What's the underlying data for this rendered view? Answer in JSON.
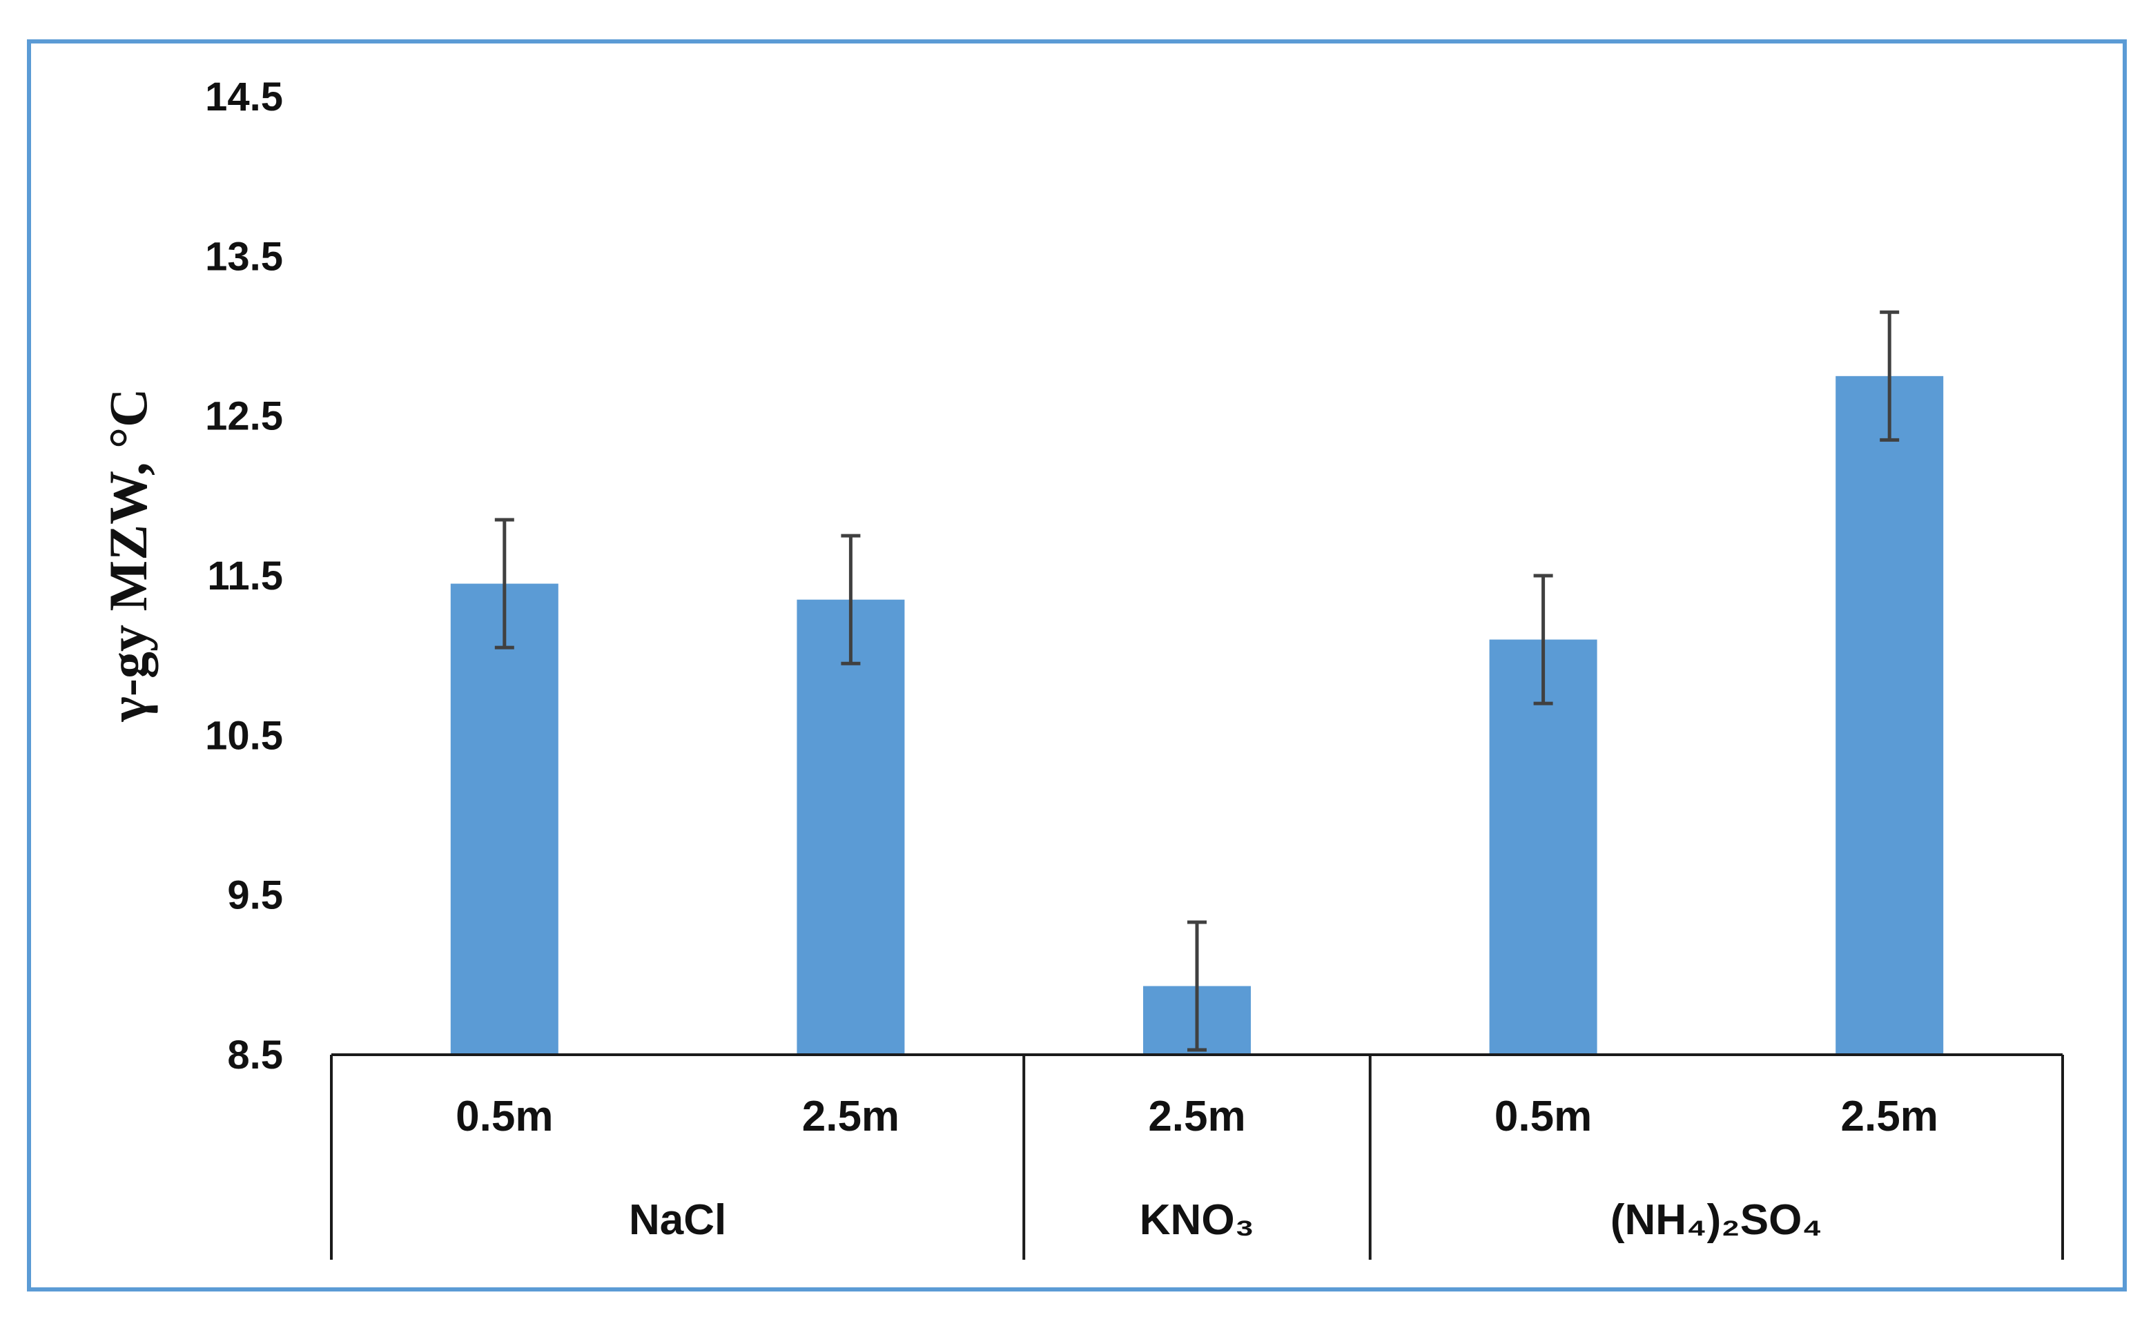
{
  "chart_data": {
    "type": "bar",
    "title": "",
    "xlabel": "",
    "ylabel": "γ-gy  MZW, °C",
    "ylim": [
      8.5,
      14.5
    ],
    "yticks": [
      "14.5",
      "13.5",
      "12.5",
      "11.5",
      "10.5",
      "9.5",
      "8.5"
    ],
    "ytick_values": [
      14.5,
      13.5,
      12.5,
      11.5,
      10.5,
      9.5,
      8.5
    ],
    "grid": false,
    "legend": "none",
    "categories": [
      "0.5m",
      "2.5m",
      "2.5m",
      "0.5m",
      "2.5m"
    ],
    "groups": [
      {
        "name": "NaCl",
        "count": 2
      },
      {
        "name": "KNO₃",
        "count": 1
      },
      {
        "name": "(NH₄)₂SO₄",
        "count": 2
      }
    ],
    "values": [
      11.45,
      11.35,
      8.93,
      11.1,
      12.75
    ],
    "errors": [
      0.4,
      0.4,
      0.4,
      0.4,
      0.4
    ],
    "colors": {
      "bar": "#5b9bd5",
      "error_bar": "#404040",
      "frame": "#5b9bd5",
      "axis": "#1a1a1a"
    }
  }
}
